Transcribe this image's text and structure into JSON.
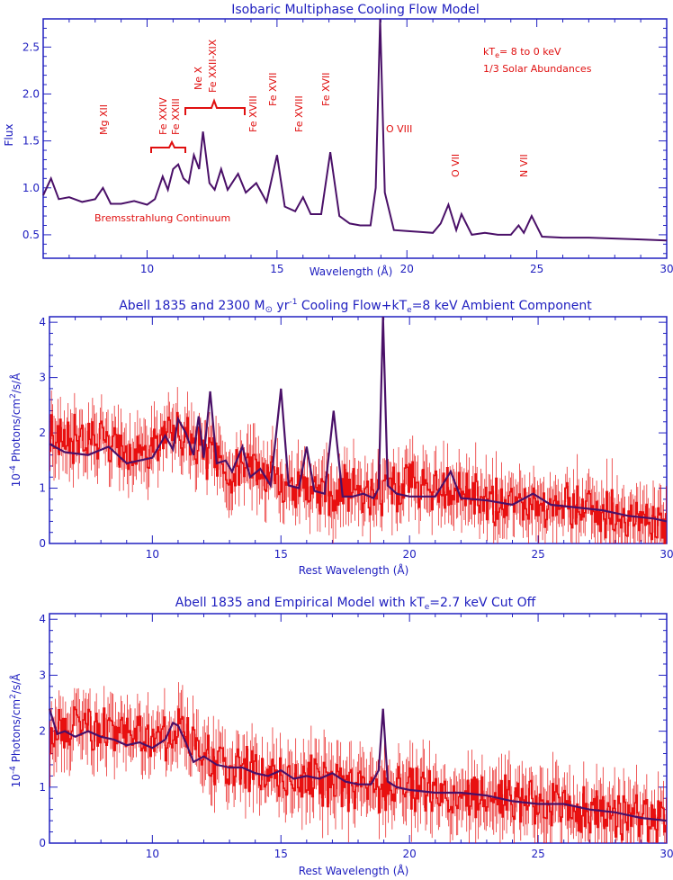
{
  "colors": {
    "axis": "#2020c0",
    "model": "#4a1068",
    "data": "#e81010",
    "annotation": "#e01010"
  },
  "chart_data": [
    {
      "type": "line",
      "title": "Isobaric Multiphase Cooling Flow Model",
      "xlabel": "Wavelength (Å)",
      "ylabel": "Flux",
      "xlim": [
        6,
        30
      ],
      "ylim": [
        0.25,
        2.8
      ],
      "xticks": [
        "10",
        "15",
        "20",
        "25",
        "30"
      ],
      "yticks": [
        "0.5",
        "1.0",
        "1.5",
        "2.0",
        "2.5"
      ],
      "annotations": {
        "params_line1_a": "kT",
        "params_line1_sub": "e",
        "params_line1_b": "= 8 to 0 keV",
        "params_line2": "1/3 Solar Abundances",
        "continuum": "Bremsstrahlung Continuum",
        "lines": [
          "Mg XII",
          "Fe XXIV",
          "Fe XXIII",
          "Ne X",
          "Fe XXII-XIX",
          "Fe XVIII",
          "Fe XVII",
          "Fe XVIII",
          "Fe XVII",
          "O VIII",
          "O VII",
          "N VII"
        ]
      },
      "series": [
        {
          "x": [
            6.0,
            6.3,
            6.6,
            7.0,
            7.5,
            8.0,
            8.3,
            8.6,
            9.0,
            9.5,
            10.0,
            10.3,
            10.6,
            10.8,
            11.0,
            11.2,
            11.4,
            11.6,
            11.8,
            12.0,
            12.15,
            12.4,
            12.6,
            12.85,
            13.1,
            13.5,
            13.8,
            14.2,
            14.6,
            15.0,
            15.3,
            15.7,
            16.0,
            16.3,
            16.7,
            17.05,
            17.4,
            17.8,
            18.2,
            18.6,
            18.8,
            18.97,
            19.15,
            19.5,
            20.0,
            20.5,
            21.0,
            21.3,
            21.6,
            21.9,
            22.1,
            22.5,
            23.0,
            23.5,
            24.0,
            24.3,
            24.5,
            24.8,
            25.2,
            26.0,
            27.0,
            28.0,
            29.0,
            30.0
          ],
          "y": [
            0.92,
            1.1,
            0.88,
            0.9,
            0.85,
            0.88,
            1.0,
            0.83,
            0.83,
            0.86,
            0.82,
            0.88,
            1.12,
            0.98,
            1.2,
            1.25,
            1.1,
            1.05,
            1.35,
            1.2,
            1.6,
            1.05,
            0.98,
            1.2,
            0.98,
            1.15,
            0.95,
            1.05,
            0.85,
            1.35,
            0.8,
            0.75,
            0.9,
            0.72,
            0.72,
            1.38,
            0.7,
            0.62,
            0.6,
            0.6,
            1.0,
            2.8,
            0.95,
            0.55,
            0.54,
            0.53,
            0.52,
            0.62,
            0.82,
            0.55,
            0.72,
            0.5,
            0.52,
            0.5,
            0.5,
            0.6,
            0.52,
            0.7,
            0.48,
            0.47,
            0.47,
            0.46,
            0.45,
            0.44
          ]
        }
      ]
    },
    {
      "type": "line",
      "title_a": "Abell 1835 and 2300 M",
      "title_sym": "⊙",
      "title_b": " yr",
      "title_sup": "-1",
      "title_c": " Cooling Flow+kT",
      "title_sub": "e",
      "title_d": "=8 keV Ambient Component",
      "xlabel": "Rest Wavelength (Å)",
      "ylabel_a": "10",
      "ylabel_sup": "-4",
      "ylabel_b": " Photons/cm",
      "ylabel_sup2": "2",
      "ylabel_c": "/s/Å",
      "xlim": [
        6,
        30
      ],
      "ylim": [
        0,
        4.1
      ],
      "xticks": [
        "10",
        "15",
        "20",
        "25",
        "30"
      ],
      "yticks": [
        "0",
        "1",
        "2",
        "3",
        "4"
      ],
      "series": [
        {
          "name": "data",
          "x": [
            6,
            7,
            8,
            9,
            10,
            11,
            12,
            13,
            14,
            15,
            16,
            17,
            18,
            19,
            20,
            21,
            22,
            23,
            24,
            25,
            26,
            27,
            28,
            29,
            30
          ],
          "y": [
            1.85,
            1.9,
            1.85,
            1.65,
            1.7,
            2.05,
            1.6,
            1.3,
            1.35,
            1.15,
            0.95,
            0.95,
            0.92,
            0.95,
            1.05,
            0.95,
            0.85,
            0.8,
            0.75,
            0.7,
            0.7,
            0.6,
            0.5,
            0.4,
            0.3
          ]
        },
        {
          "name": "model",
          "x": [
            6,
            6.6,
            7.5,
            8.3,
            9.0,
            9.5,
            10.0,
            10.5,
            10.8,
            11.0,
            11.3,
            11.6,
            11.8,
            12.0,
            12.25,
            12.5,
            12.85,
            13.1,
            13.5,
            13.8,
            14.2,
            14.6,
            15.0,
            15.3,
            15.7,
            16.0,
            16.3,
            16.7,
            17.05,
            17.4,
            17.8,
            18.2,
            18.6,
            18.8,
            18.97,
            19.15,
            19.5,
            20.0,
            20.5,
            21.0,
            21.6,
            22.0,
            22.5,
            23.0,
            24.0,
            24.8,
            25.5,
            26.5,
            27.5,
            28.5,
            29.5,
            30.0
          ],
          "y": [
            1.8,
            1.65,
            1.6,
            1.75,
            1.45,
            1.5,
            1.55,
            1.95,
            1.7,
            2.25,
            2.0,
            1.6,
            2.3,
            1.55,
            2.75,
            1.45,
            1.5,
            1.3,
            1.75,
            1.2,
            1.35,
            1.05,
            2.8,
            1.05,
            1.0,
            1.75,
            0.95,
            0.9,
            2.4,
            0.85,
            0.85,
            0.9,
            0.82,
            1.0,
            4.1,
            1.05,
            0.9,
            0.85,
            0.85,
            0.85,
            1.3,
            0.82,
            0.8,
            0.78,
            0.7,
            0.9,
            0.7,
            0.65,
            0.6,
            0.5,
            0.45,
            0.4
          ]
        }
      ]
    },
    {
      "type": "line",
      "title_a": "Abell 1835 and Empirical Model with kT",
      "title_sub": "e",
      "title_b": "=2.7 keV Cut Off",
      "xlabel": "Rest Wavelength (Å)",
      "ylabel_a": "10",
      "ylabel_sup": "-4",
      "ylabel_b": " Photons/cm",
      "ylabel_sup2": "2",
      "ylabel_c": "/s/Å",
      "xlim": [
        6,
        30
      ],
      "ylim": [
        0,
        4.1
      ],
      "xticks": [
        "10",
        "15",
        "20",
        "25",
        "30"
      ],
      "yticks": [
        "0",
        "1",
        "2",
        "3",
        "4"
      ],
      "series": [
        {
          "name": "data",
          "x": [
            6,
            7,
            8,
            9,
            10,
            11,
            12,
            13,
            14,
            15,
            16,
            17,
            18,
            19,
            20,
            21,
            22,
            23,
            24,
            25,
            26,
            27,
            28,
            29,
            30
          ],
          "y": [
            2.0,
            2.1,
            2.0,
            1.9,
            1.85,
            2.05,
            1.55,
            1.35,
            1.3,
            1.2,
            1.15,
            1.05,
            1.0,
            1.0,
            0.95,
            0.9,
            0.9,
            0.85,
            0.8,
            0.7,
            0.65,
            0.55,
            0.5,
            0.45,
            0.4
          ]
        },
        {
          "name": "model",
          "x": [
            6,
            6.3,
            6.6,
            7.0,
            7.5,
            8.0,
            8.5,
            9.0,
            9.5,
            10.0,
            10.5,
            10.8,
            11.0,
            11.3,
            11.6,
            12.0,
            12.5,
            13.0,
            13.5,
            14.0,
            14.5,
            15.0,
            15.5,
            16.0,
            16.5,
            17.0,
            17.5,
            18.0,
            18.5,
            18.8,
            18.97,
            19.15,
            19.5,
            20.0,
            21.0,
            22.0,
            23.0,
            24.0,
            25.0,
            26.0,
            27.0,
            28.0,
            29.0,
            30.0
          ],
          "y": [
            2.4,
            1.95,
            2.0,
            1.9,
            2.0,
            1.9,
            1.85,
            1.75,
            1.8,
            1.7,
            1.85,
            2.15,
            2.1,
            1.8,
            1.45,
            1.55,
            1.4,
            1.35,
            1.35,
            1.25,
            1.2,
            1.3,
            1.15,
            1.2,
            1.15,
            1.25,
            1.1,
            1.05,
            1.05,
            1.3,
            2.4,
            1.1,
            1.0,
            0.95,
            0.9,
            0.9,
            0.85,
            0.75,
            0.7,
            0.7,
            0.6,
            0.55,
            0.45,
            0.4
          ]
        }
      ]
    }
  ]
}
